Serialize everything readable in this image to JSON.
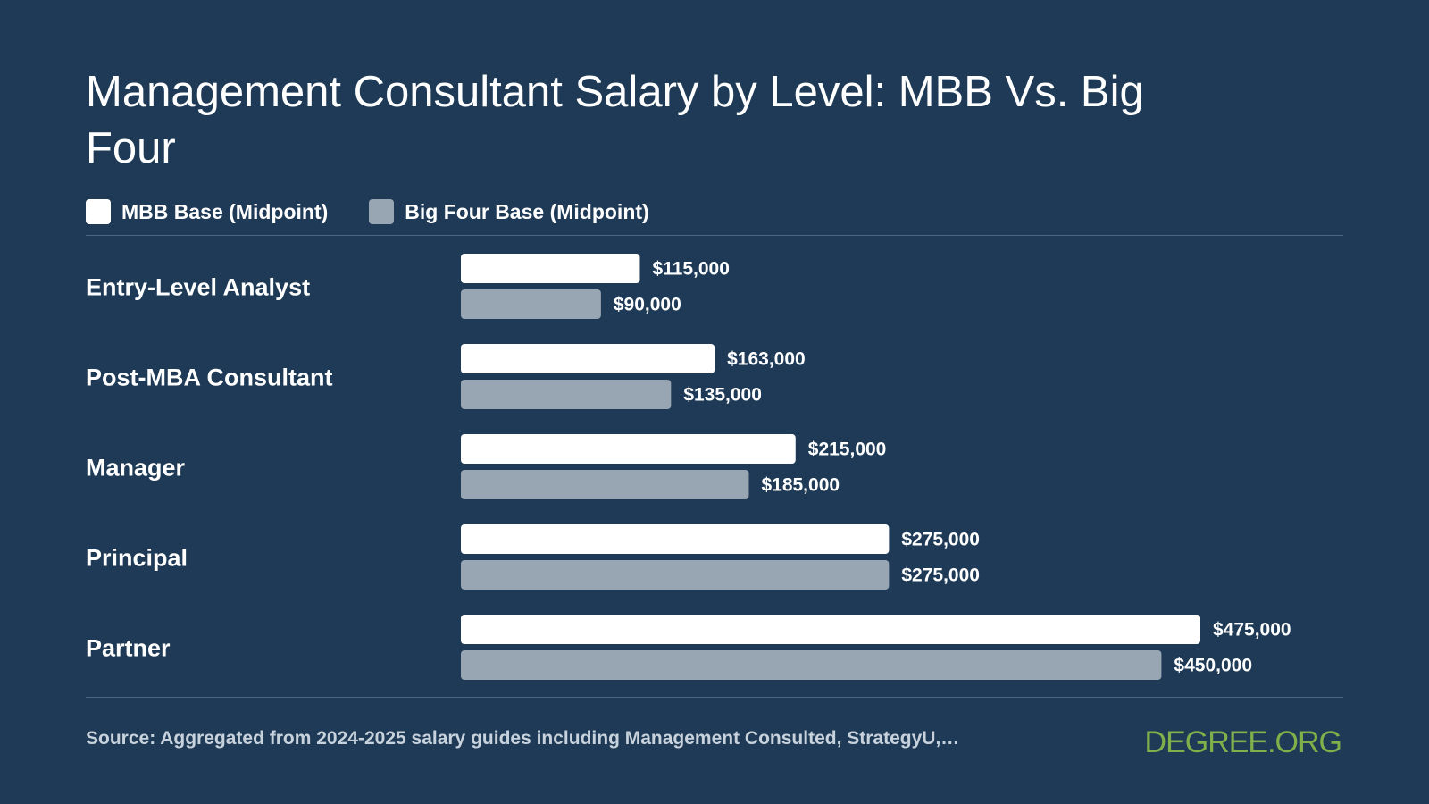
{
  "colors": {
    "background": "#1e3a56",
    "mbb": "#ffffff",
    "bigfour": "#98a5b2",
    "logo": "#7fb04a"
  },
  "chart_data": {
    "type": "bar",
    "orientation": "horizontal",
    "title": "Management Consultant Salary by Level: MBB Vs. Big Four",
    "categories": [
      "Entry-Level Analyst",
      "Post-MBA Consultant",
      "Manager",
      "Principal",
      "Partner"
    ],
    "series": [
      {
        "name": "MBB Base (Midpoint)",
        "values": [
          115000,
          163000,
          215000,
          275000,
          475000
        ],
        "labels": [
          "$115,000",
          "$163,000",
          "$215,000",
          "$275,000",
          "$475,000"
        ]
      },
      {
        "name": "Big Four Base (Midpoint)",
        "values": [
          90000,
          135000,
          185000,
          275000,
          450000
        ],
        "labels": [
          "$90,000",
          "$135,000",
          "$185,000",
          "$275,000",
          "$450,000"
        ]
      }
    ],
    "xlim": [
      0,
      475000
    ],
    "grid": false,
    "legend_position": "top-left"
  },
  "source": "Source: Aggregated from 2024-2025 salary guides including Management Consulted, StrategyU,…",
  "logo": "DEGREE.ORG"
}
